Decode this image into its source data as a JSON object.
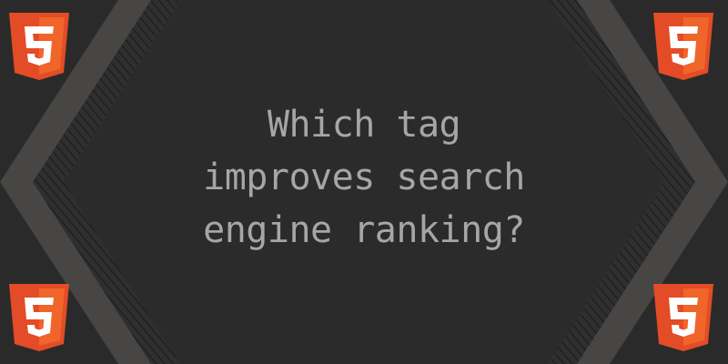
{
  "colors": {
    "background": "#2a2a2a",
    "frame_band": "#474645",
    "hatch_band": "#2f2f2f",
    "hatch_stroke": "#1c1c1c",
    "center_panel": "#2b2b2b",
    "text": "#a6a6a6",
    "html5_orange_dark": "#e34c26",
    "html5_orange_light": "#f06529",
    "html5_white": "#ffffff",
    "html5_shade": "#ebebeb"
  },
  "question": {
    "lines": [
      "Which tag",
      "improves search",
      "engine ranking?"
    ]
  },
  "badges": {
    "icon": "html5-logo-icon",
    "numeral": "5"
  }
}
